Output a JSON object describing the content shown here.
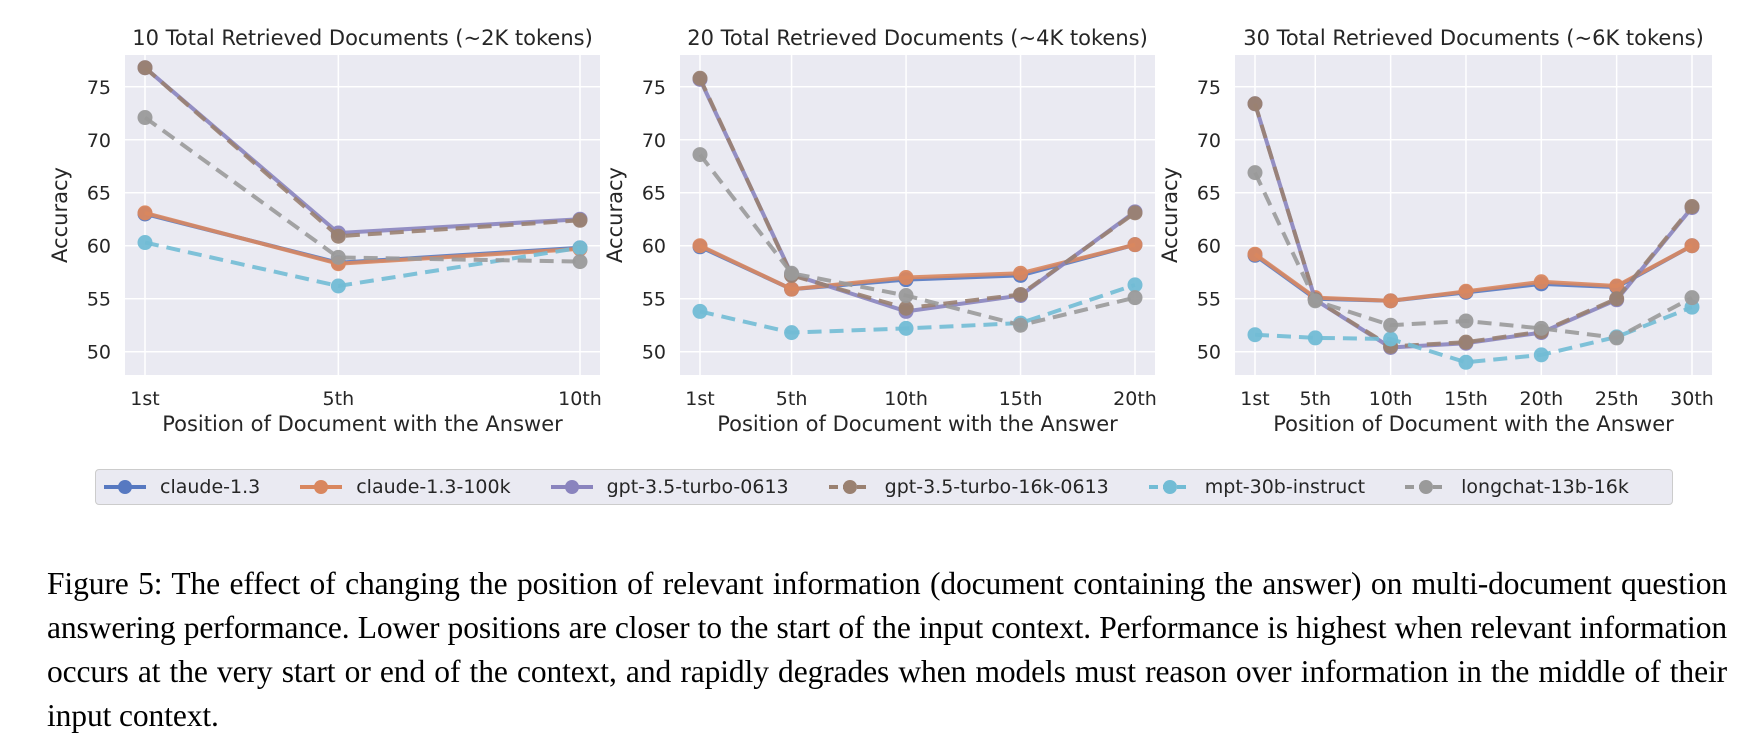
{
  "chart_data": [
    {
      "type": "line",
      "title": "10 Total Retrieved Documents (~2K tokens)",
      "xlabel": "Position of Document with the Answer",
      "ylabel": "Accuracy",
      "x": [
        1,
        5,
        10
      ],
      "xticks": [
        "1st",
        "5th",
        "10th"
      ],
      "yticks": [
        50,
        55,
        60,
        65,
        70,
        75
      ],
      "ylim": [
        47.8,
        78
      ],
      "grid": true,
      "series": [
        {
          "name": "claude-1.3",
          "values": [
            63.0,
            58.4,
            59.8
          ]
        },
        {
          "name": "claude-1.3-100k",
          "values": [
            63.1,
            58.3,
            59.7
          ]
        },
        {
          "name": "gpt-3.5-turbo-0613",
          "values": [
            76.8,
            61.2,
            62.5
          ]
        },
        {
          "name": "gpt-3.5-turbo-16k-0613",
          "values": [
            76.8,
            60.9,
            62.4
          ]
        },
        {
          "name": "mpt-30b-instruct",
          "values": [
            60.3,
            56.2,
            59.8
          ]
        },
        {
          "name": "longchat-13b-16k",
          "values": [
            72.1,
            58.9,
            58.5
          ]
        }
      ]
    },
    {
      "type": "line",
      "title": "20 Total Retrieved Documents (~4K tokens)",
      "xlabel": "Position of Document with the Answer",
      "ylabel": "Accuracy",
      "x": [
        1,
        5,
        10,
        15,
        20
      ],
      "xticks": [
        "1st",
        "5th",
        "10th",
        "15th",
        "20th"
      ],
      "yticks": [
        50,
        55,
        60,
        65,
        70,
        75
      ],
      "ylim": [
        47.8,
        78
      ],
      "grid": true,
      "series": [
        {
          "name": "claude-1.3",
          "values": [
            59.9,
            55.9,
            56.8,
            57.2,
            60.1
          ]
        },
        {
          "name": "claude-1.3-100k",
          "values": [
            60.0,
            55.9,
            57.0,
            57.4,
            60.1
          ]
        },
        {
          "name": "gpt-3.5-turbo-0613",
          "values": [
            75.7,
            57.3,
            53.8,
            55.3,
            63.2
          ]
        },
        {
          "name": "gpt-3.5-turbo-16k-0613",
          "values": [
            75.8,
            57.2,
            54.1,
            55.4,
            63.1
          ]
        },
        {
          "name": "mpt-30b-instruct",
          "values": [
            53.8,
            51.8,
            52.2,
            52.7,
            56.3
          ]
        },
        {
          "name": "longchat-13b-16k",
          "values": [
            68.6,
            57.4,
            55.3,
            52.5,
            55.1
          ]
        }
      ]
    },
    {
      "type": "line",
      "title": "30 Total Retrieved Documents (~6K tokens)",
      "xlabel": "Position of Document with the Answer",
      "ylabel": "Accuracy",
      "x": [
        1,
        5,
        10,
        15,
        20,
        25,
        30
      ],
      "xticks": [
        "1st",
        "5th",
        "10th",
        "15th",
        "20th",
        "25th",
        "30th"
      ],
      "yticks": [
        50,
        55,
        60,
        65,
        70,
        75
      ],
      "ylim": [
        47.8,
        78
      ],
      "grid": true,
      "series": [
        {
          "name": "claude-1.3",
          "values": [
            59.1,
            55.0,
            54.8,
            55.6,
            56.4,
            56.1,
            60.0
          ]
        },
        {
          "name": "claude-1.3-100k",
          "values": [
            59.2,
            55.1,
            54.8,
            55.7,
            56.6,
            56.2,
            60.0
          ]
        },
        {
          "name": "gpt-3.5-turbo-0613",
          "values": [
            73.4,
            54.9,
            50.4,
            50.8,
            51.8,
            54.9,
            63.6
          ]
        },
        {
          "name": "gpt-3.5-turbo-16k-0613",
          "values": [
            73.4,
            54.9,
            50.5,
            50.9,
            51.9,
            55.0,
            63.7
          ]
        },
        {
          "name": "mpt-30b-instruct",
          "values": [
            51.6,
            51.3,
            51.2,
            49.0,
            49.7,
            51.4,
            54.2
          ]
        },
        {
          "name": "longchat-13b-16k",
          "values": [
            66.9,
            54.8,
            52.5,
            52.9,
            52.2,
            51.3,
            55.1
          ]
        }
      ]
    }
  ],
  "legend": {
    "placement": "bottom",
    "items": [
      {
        "name": "claude-1.3",
        "color": "#5779c1",
        "dashed": false
      },
      {
        "name": "claude-1.3-100k",
        "color": "#d9875f",
        "dashed": false
      },
      {
        "name": "gpt-3.5-turbo-0613",
        "color": "#8a84be",
        "dashed": false
      },
      {
        "name": "gpt-3.5-turbo-16k-0613",
        "color": "#9a8171",
        "dashed": true
      },
      {
        "name": "mpt-30b-instruct",
        "color": "#72bcd5",
        "dashed": true
      },
      {
        "name": "longchat-13b-16k",
        "color": "#9a9a9a",
        "dashed": true
      }
    ]
  },
  "caption": {
    "text": "Figure 5: The effect of changing the position of relevant information (document containing the answer) on multi-document question answering performance. Lower positions are closer to the start of the input context. Performance is highest when relevant information occurs at the very start or end of the context, and rapidly degrades when models must reason over information in the middle of their input context."
  }
}
